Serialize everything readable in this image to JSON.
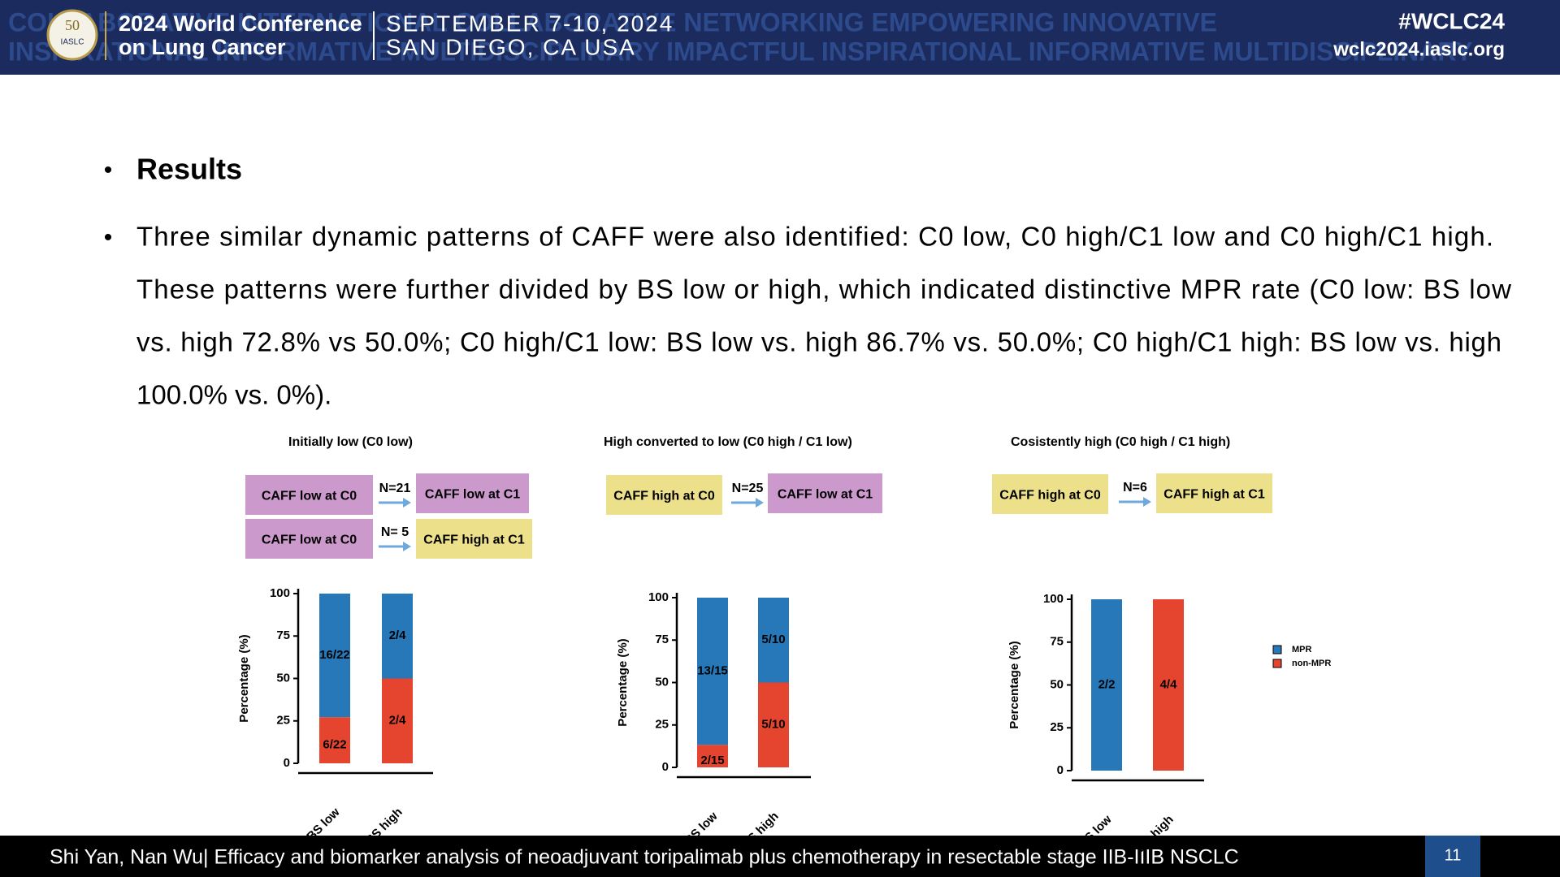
{
  "header": {
    "logo_number": "50",
    "logo_text": "IASLC",
    "conference_line1": "2024 World Conference",
    "conference_line2": "on Lung Cancer",
    "date": "SEPTEMBER 7-10, 2024",
    "location": "SAN DIEGO, CA USA",
    "hashtag": "#WCLC24",
    "website": "wclc2024.iaslc.org",
    "background_line1": "COLLABORATIVE INTERNATIONAL COLLABORATIVE NETWORKING EMPOWERING INNOVATIVE",
    "background_line2": "INSPIRATIONAL INFORMATIVE MULTIDISCIPLINARY IMPACTFUL INSPIRATIONAL INFORMATIVE MULTIDISCIPLINARY"
  },
  "bullets": [
    {
      "lines": [
        "Results"
      ]
    },
    {
      "lines": [
        "Three similar dynamic patterns of CAFF were also identified: C0 low, C0 high/C1 low and C0 high/C1 high.",
        "These patterns were further divided by BS low or high, which indicated distinctive MPR rate (C0 low: BS low",
        "vs. high 72.8% vs 50.0%; C0 high/C1 low: BS low vs. high 86.7% vs. 50.0%; C0 high/C1 high: BS low vs. high",
        "100.0% vs. 0%)."
      ]
    }
  ],
  "panels": [
    {
      "title": "Initially low  (C0 low)",
      "rows": [
        {
          "from": "CAFF low at C0",
          "n": "N=21",
          "to": "CAFF low at C1"
        },
        {
          "from": "CAFF low at C0",
          "n": "N= 5",
          "to": "CAFF high at C1"
        }
      ]
    },
    {
      "title": "High converted to low (C0 high / C1 low)",
      "rows": [
        {
          "from": "CAFF high at C0",
          "n": "N=25",
          "to": "CAFF low at C1"
        }
      ]
    },
    {
      "title": "Cosistently high (C0 high / C1 high)",
      "rows": [
        {
          "from": "CAFF high at C0",
          "n": "N=6",
          "to": "CAFF high at C1"
        }
      ]
    }
  ],
  "chart_data": [
    {
      "type": "stacked_bar",
      "ylabel": "Percentage (%)",
      "categories": [
        "BS low",
        "BS high"
      ],
      "ylim": [
        0,
        100
      ],
      "yticks": [
        0,
        25,
        50,
        75,
        100
      ],
      "series": [
        {
          "color": "#2678b8",
          "values": [
            72.8,
            50
          ],
          "value_labels": [
            "16/22",
            "2/4"
          ]
        },
        {
          "color": "#e5452f",
          "values": [
            27.2,
            50
          ],
          "value_labels": [
            "6/22",
            "2/4"
          ]
        }
      ]
    },
    {
      "type": "stacked_bar",
      "ylabel": "Percentage (%)",
      "categories": [
        "BS low",
        "BS high"
      ],
      "ylim": [
        0,
        100
      ],
      "yticks": [
        0,
        25,
        50,
        75,
        100
      ],
      "series": [
        {
          "color": "#2678b8",
          "values": [
            86.7,
            50
          ],
          "value_labels": [
            "13/15",
            "5/10"
          ]
        },
        {
          "color": "#e5452f",
          "values": [
            13.3,
            50
          ],
          "value_labels": [
            "2/15",
            "5/10"
          ]
        }
      ]
    },
    {
      "type": "stacked_bar",
      "ylabel": "Percentage (%)",
      "categories": [
        "BS low",
        "BS high"
      ],
      "ylim": [
        0,
        100
      ],
      "yticks": [
        0,
        25,
        50,
        75,
        100
      ],
      "legend": "right",
      "series": [
        {
          "name": "MPR",
          "color": "#2678b8",
          "values": [
            100,
            0
          ],
          "value_labels": [
            "2/2",
            null
          ]
        },
        {
          "name": "non-MPR",
          "color": "#e5452f",
          "values": [
            0,
            100
          ],
          "value_labels": [
            null,
            "4/4"
          ]
        }
      ]
    }
  ],
  "footer": {
    "citation": "Shi Yan, Nan Wu| Efficacy and biomarker analysis of neoadjuvant toripalimab plus chemotherapy in resectable stage IIB-IIIB NSCLC",
    "page": "11"
  }
}
